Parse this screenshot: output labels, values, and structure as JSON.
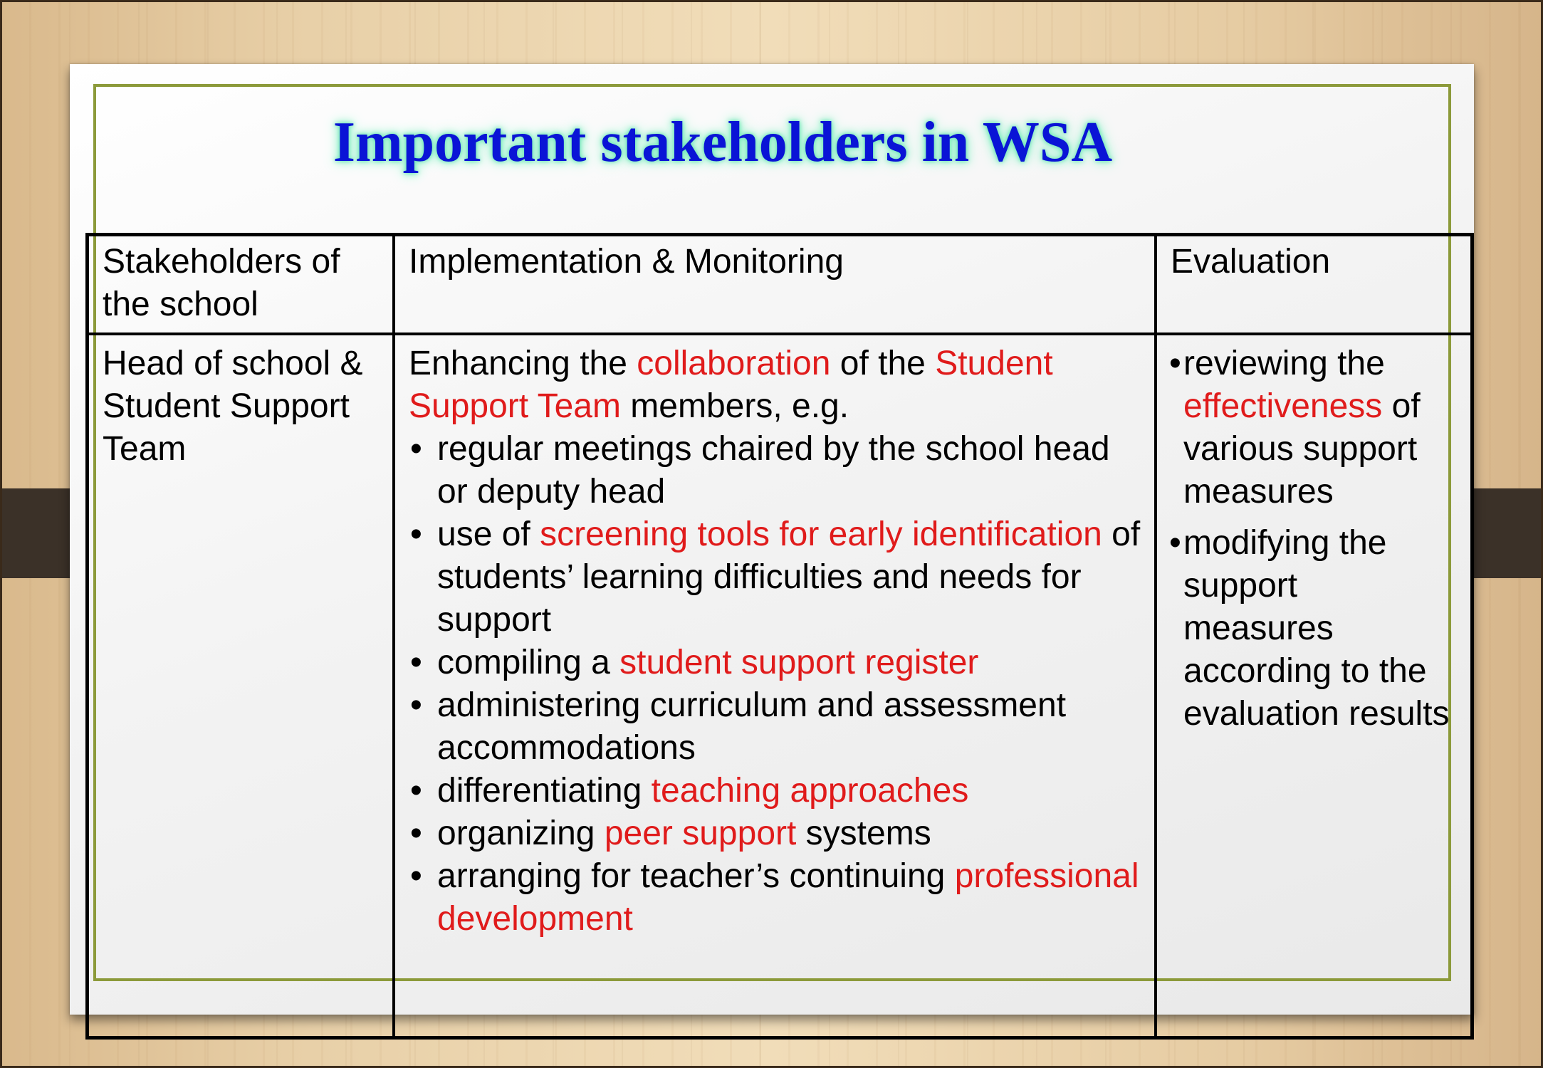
{
  "slide": {
    "title": "Important stakeholders in WSA"
  },
  "table": {
    "headers": [
      "Stakeholders of the school",
      "Implementation & Monitoring",
      "Evaluation"
    ],
    "row": {
      "stakeholder": "Head of school & Student Support Team",
      "intro": {
        "pre": "Enhancing the ",
        "highlight1": "collaboration",
        "mid": " of the ",
        "highlight2": "Student Support Team",
        "post": " members, e.g."
      },
      "items": [
        {
          "pre": "regular meetings chaired by the school head or deputy head",
          "highlight": "",
          "post": ""
        },
        {
          "pre": "use of ",
          "highlight": "screening tools for early identification",
          "post": " of students’ learning difficulties and needs for support"
        },
        {
          "pre": "compiling a ",
          "highlight": "student support register",
          "post": ""
        },
        {
          "pre": "administering curriculum and assessment accommodations",
          "highlight": "",
          "post": ""
        },
        {
          "pre": "differentiating ",
          "highlight": "teaching approaches",
          "post": ""
        },
        {
          "pre": "organizing ",
          "highlight": "peer support",
          "post": " systems"
        },
        {
          "pre": "arranging for teacher’s continuing ",
          "highlight": "professional development",
          "post": ""
        }
      ],
      "evaluation": [
        {
          "pre": "reviewing the ",
          "highlight": "effectiveness",
          "post": " of various support measures"
        },
        {
          "pre": "modifying the support measures according to the evaluation results",
          "highlight": "",
          "post": ""
        }
      ]
    }
  },
  "colors": {
    "title": "#0a14d6",
    "highlight": "#e01b1b",
    "inner_border": "#8c9a3a"
  }
}
